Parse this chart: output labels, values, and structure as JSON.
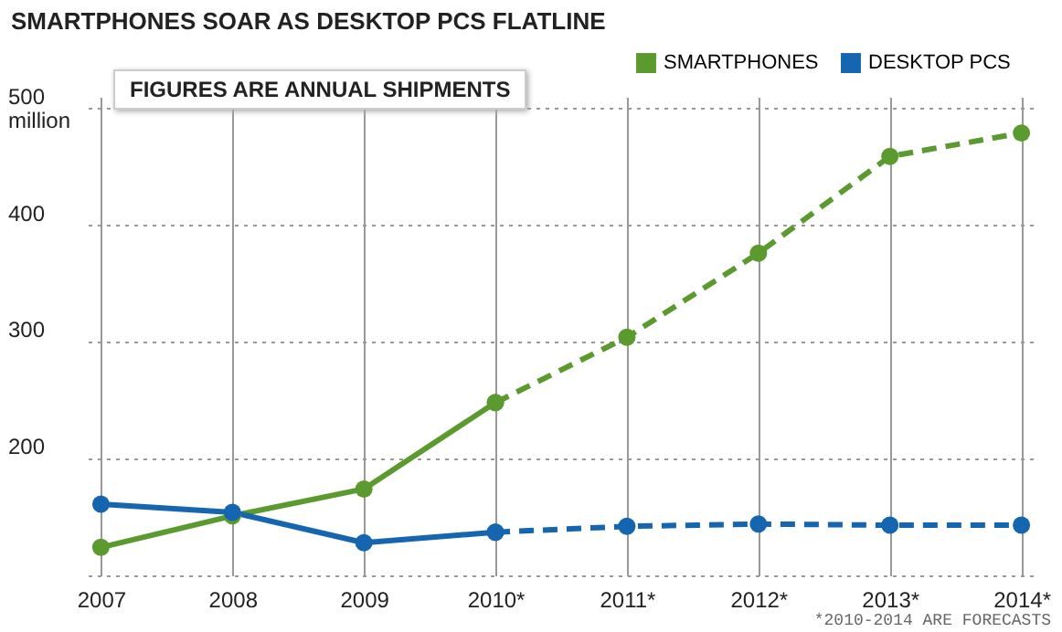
{
  "chart_data": {
    "type": "line",
    "title": "SMARTPHONES SOAR AS DESKTOP PCS FLATLINE",
    "annotations": [
      "FIGURES ARE ANNUAL SHIPMENTS",
      "*2010-2014 ARE FORECASTS"
    ],
    "categories": [
      "2007",
      "2008",
      "2009",
      "2010*",
      "2011*",
      "2012*",
      "2013*",
      "2014*"
    ],
    "series": [
      {
        "name": "SMARTPHONES",
        "color": "#5b9a2e",
        "line_style": "solid",
        "values": [
          124,
          151,
          174,
          248,
          null,
          null,
          null,
          null
        ]
      },
      {
        "color": "#5b9a2e",
        "line_style": "dashed",
        "values": [
          null,
          null,
          null,
          248,
          304,
          376,
          459,
          479
        ]
      },
      {
        "name": "DESKTOP PCS",
        "color": "#1565b0",
        "line_style": "solid",
        "values": [
          161,
          154,
          128,
          137,
          null,
          null,
          null,
          null
        ]
      },
      {
        "color": "#1565b0",
        "line_style": "dashed",
        "values": [
          null,
          null,
          null,
          137,
          142,
          144,
          143,
          143
        ]
      }
    ],
    "ylim": [
      100,
      510
    ],
    "yticks": [
      {
        "value": 100,
        "label": null
      },
      200,
      300,
      400,
      {
        "value": 500,
        "label": "500 million"
      }
    ],
    "grid": true,
    "legend": "top right",
    "marker": "circle"
  }
}
